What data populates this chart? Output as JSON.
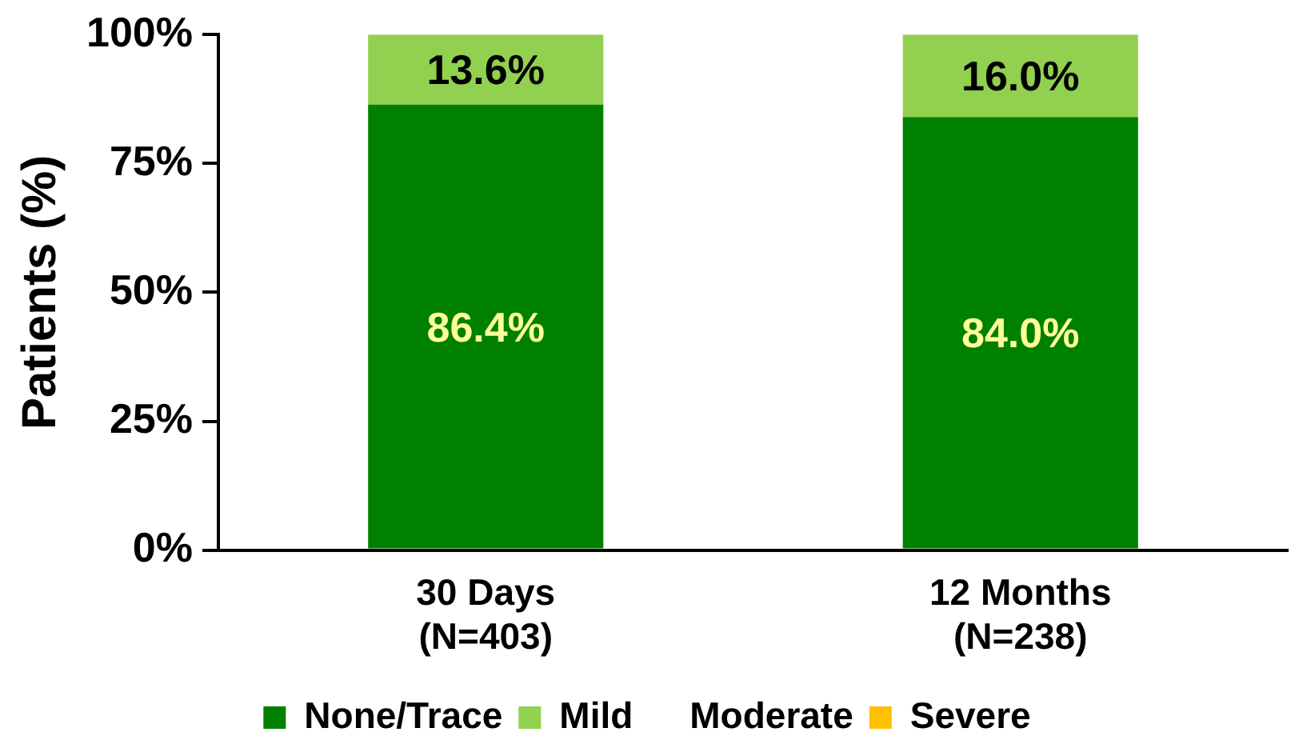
{
  "chart_data": {
    "type": "bar",
    "stacked": true,
    "ylabel": "Patients (%)",
    "categories": [
      "30 Days\n(N=403)",
      "12 Months\n(N=238)"
    ],
    "series": [
      {
        "name": "None/Trace",
        "color": "#008000",
        "values": [
          86.4,
          84.0
        ],
        "value_labels": [
          "86.4%",
          "84.0%"
        ]
      },
      {
        "name": "Mild",
        "color": "#92d050",
        "values": [
          13.6,
          16.0
        ],
        "value_labels": [
          "13.6%",
          "16.0%"
        ]
      },
      {
        "name": "Moderate",
        "values": [
          0,
          0
        ],
        "value_labels": [
          null,
          null
        ]
      },
      {
        "name": "Severe",
        "color": "#ffc000",
        "values": [
          0,
          0
        ],
        "value_labels": [
          null,
          null
        ]
      }
    ],
    "ylim": [
      0,
      100
    ],
    "yticks": [
      {
        "value": 0,
        "label": "0%"
      },
      {
        "value": 25,
        "label": "25%"
      },
      {
        "value": 50,
        "label": "50%"
      },
      {
        "value": 75,
        "label": "75%"
      },
      {
        "value": 100,
        "label": "100%"
      }
    ],
    "grid": false,
    "legend": "bottom"
  }
}
